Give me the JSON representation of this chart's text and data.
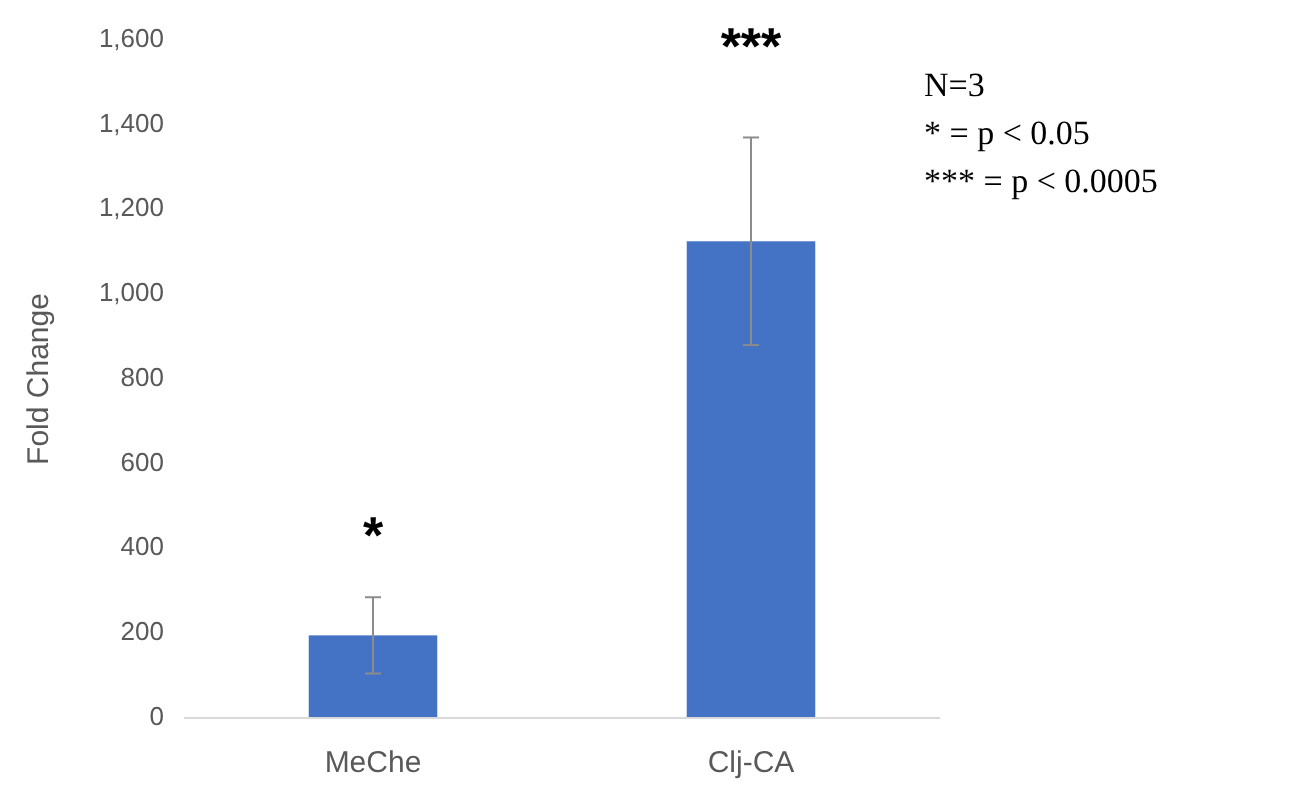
{
  "chart_data": {
    "type": "bar",
    "ylabel": "Fold Change",
    "categories": [
      "MeChe",
      "Clj-CA"
    ],
    "values": [
      195,
      1125
    ],
    "errors": [
      90,
      245
    ],
    "color": "#4472c4",
    "ylim": [
      0,
      1600
    ],
    "yticks": [
      {
        "value": 0,
        "label": "0"
      },
      {
        "value": 200,
        "label": "200"
      },
      {
        "value": 400,
        "label": "400"
      },
      {
        "value": 600,
        "label": "600"
      },
      {
        "value": 800,
        "label": "800"
      },
      {
        "value": 1000,
        "label": "1,000"
      },
      {
        "value": 1200,
        "label": "1,200"
      },
      {
        "value": 1400,
        "label": "1,400"
      },
      {
        "value": 1600,
        "label": "1,600"
      }
    ],
    "grid": false,
    "annotations": [
      "*",
      "***",
      "N=3",
      "* = p < 0.05",
      "*** = p < 0.0005"
    ]
  }
}
